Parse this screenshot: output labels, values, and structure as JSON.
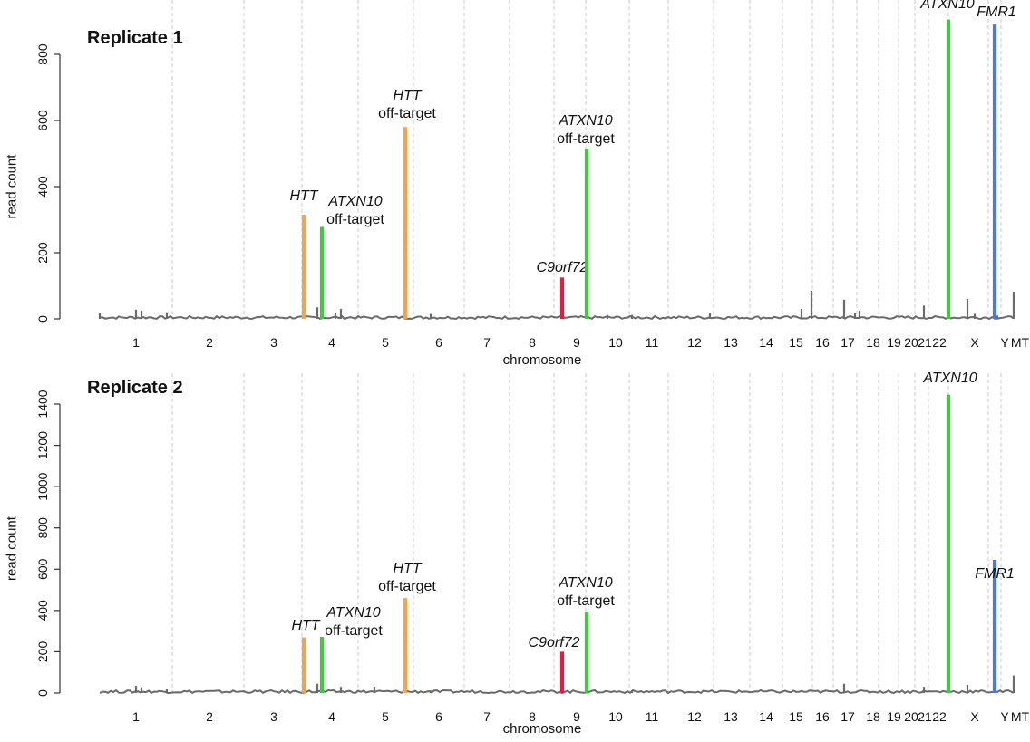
{
  "chart_data": [
    {
      "type": "bar",
      "title": "Replicate 1",
      "xlabel": "chromosome",
      "ylabel": "read count",
      "ylim": [
        0,
        800
      ],
      "yticks": [
        0,
        200,
        400,
        600,
        800
      ],
      "grid": "vertical dashed lines between chromosomes",
      "colors": {
        "background_series": "#666666",
        "HTT": "#f5a24a",
        "ATXN10": "#3fc93f",
        "C9orf72": "#e8193c",
        "FMR1": "#4a78e8"
      },
      "chromosomes": [
        "1",
        "2",
        "3",
        "4",
        "5",
        "6",
        "7",
        "8",
        "9",
        "10",
        "11",
        "12",
        "13",
        "14",
        "15",
        "16",
        "17",
        "18",
        "19",
        "20",
        "21",
        "22",
        "X",
        "Y",
        "MT"
      ],
      "highlighted": [
        {
          "gene": "HTT",
          "label": "HTT",
          "sublabel": "",
          "chromosome": "4",
          "value": 315,
          "color": "#f5a24a"
        },
        {
          "gene": "ATXN10",
          "label": "ATXN10",
          "sublabel": "off-target",
          "chromosome": "4",
          "value": 278,
          "color": "#3fc93f"
        },
        {
          "gene": "HTT",
          "label": "HTT",
          "sublabel": "off-target",
          "chromosome": "5",
          "value": 580,
          "color": "#f5a24a"
        },
        {
          "gene": "C9orf72",
          "label": "C9orf72",
          "sublabel": "",
          "chromosome": "9",
          "value": 125,
          "color": "#e8193c"
        },
        {
          "gene": "ATXN10",
          "label": "ATXN10",
          "sublabel": "off-target",
          "chromosome": "9",
          "value": 515,
          "color": "#3fc93f"
        },
        {
          "gene": "ATXN10",
          "label": "ATXN10",
          "sublabel": "",
          "chromosome": "22",
          "value": 905,
          "color": "#3fc93f"
        },
        {
          "gene": "FMR1",
          "label": "FMR1",
          "sublabel": "",
          "chromosome": "X",
          "value": 890,
          "color": "#4a78e8"
        }
      ],
      "background_peaks": [
        {
          "chromosome": "1",
          "value": 18
        },
        {
          "chromosome": "1",
          "value": 28
        },
        {
          "chromosome": "1",
          "value": 25
        },
        {
          "chromosome": "2",
          "value": 20
        },
        {
          "chromosome": "4",
          "value": 35
        },
        {
          "chromosome": "4",
          "value": 30
        },
        {
          "chromosome": "4",
          "value": 18
        },
        {
          "chromosome": "6",
          "value": 15
        },
        {
          "chromosome": "10",
          "value": 12
        },
        {
          "chromosome": "11",
          "value": 12
        },
        {
          "chromosome": "12",
          "value": 18
        },
        {
          "chromosome": "16",
          "value": 30
        },
        {
          "chromosome": "16",
          "value": 85
        },
        {
          "chromosome": "17",
          "value": 58
        },
        {
          "chromosome": "17",
          "value": 18
        },
        {
          "chromosome": "17",
          "value": 25
        },
        {
          "chromosome": "21",
          "value": 40
        },
        {
          "chromosome": "X",
          "value": 60
        },
        {
          "chromosome": "X",
          "value": 15
        },
        {
          "chromosome": "Y",
          "value": 10
        },
        {
          "chromosome": "MT",
          "value": 82
        }
      ]
    },
    {
      "type": "bar",
      "title": "Replicate 2",
      "xlabel": "chromosome",
      "ylabel": "read count",
      "ylim": [
        0,
        1400
      ],
      "yticks": [
        0,
        200,
        400,
        600,
        800,
        1000,
        1200,
        1400
      ],
      "grid": "vertical dashed lines between chromosomes",
      "colors": {
        "background_series": "#666666",
        "HTT": "#f5a24a",
        "ATXN10": "#3fc93f",
        "C9orf72": "#e8193c",
        "FMR1": "#4a78e8"
      },
      "chromosomes": [
        "1",
        "2",
        "3",
        "4",
        "5",
        "6",
        "7",
        "8",
        "9",
        "10",
        "11",
        "12",
        "13",
        "14",
        "15",
        "16",
        "17",
        "18",
        "19",
        "20",
        "21",
        "22",
        "X",
        "Y",
        "MT"
      ],
      "highlighted": [
        {
          "gene": "HTT",
          "label": "HTT",
          "sublabel": "",
          "chromosome": "4",
          "value": 270,
          "color": "#f5a24a"
        },
        {
          "gene": "ATXN10",
          "label": "ATXN10",
          "sublabel": "off-target",
          "chromosome": "4",
          "value": 272,
          "color": "#3fc93f"
        },
        {
          "gene": "HTT",
          "label": "HTT",
          "sublabel": "off-target",
          "chromosome": "5",
          "value": 460,
          "color": "#f5a24a"
        },
        {
          "gene": "C9orf72",
          "label": "C9orf72",
          "sublabel": "",
          "chromosome": "9",
          "value": 200,
          "color": "#e8193c"
        },
        {
          "gene": "ATXN10",
          "label": "ATXN10",
          "sublabel": "off-target",
          "chromosome": "9",
          "value": 395,
          "color": "#3fc93f"
        },
        {
          "gene": "ATXN10",
          "label": "ATXN10",
          "sublabel": "",
          "chromosome": "22",
          "value": 1445,
          "color": "#3fc93f"
        },
        {
          "gene": "FMR1",
          "label": "FMR1",
          "sublabel": "",
          "chromosome": "X",
          "value": 645,
          "color": "#4a78e8"
        }
      ],
      "background_peaks": [
        {
          "chromosome": "1",
          "value": 35
        },
        {
          "chromosome": "1",
          "value": 28
        },
        {
          "chromosome": "2",
          "value": 20
        },
        {
          "chromosome": "4",
          "value": 45
        },
        {
          "chromosome": "4",
          "value": 30
        },
        {
          "chromosome": "5",
          "value": 30
        },
        {
          "chromosome": "6",
          "value": 12
        },
        {
          "chromosome": "10",
          "value": 10
        },
        {
          "chromosome": "17",
          "value": 45
        },
        {
          "chromosome": "21",
          "value": 30
        },
        {
          "chromosome": "X",
          "value": 40
        },
        {
          "chromosome": "MT",
          "value": 85
        }
      ]
    }
  ]
}
